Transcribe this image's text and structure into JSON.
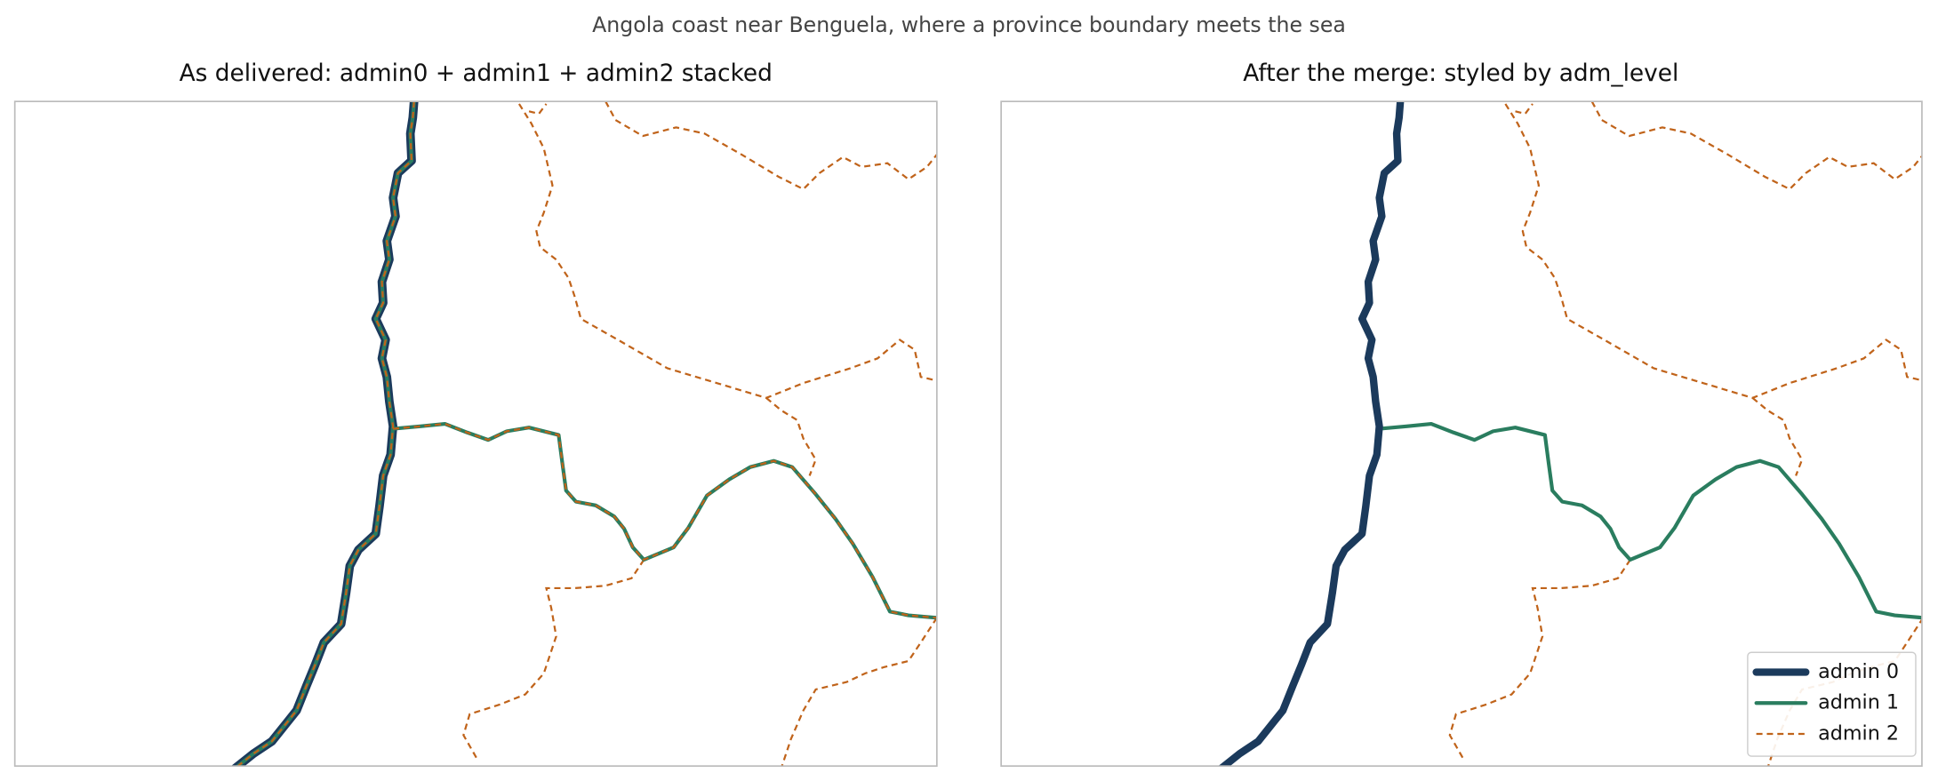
{
  "title": "Angola coast near Benguela, where a province boundary meets the sea",
  "panels": [
    {
      "title": "As delivered: admin0 + admin1 + admin2 stacked"
    },
    {
      "title": "After the merge: styled by adm_level"
    }
  ],
  "legend": [
    "admin 0",
    "admin 1",
    "admin 2"
  ]
}
